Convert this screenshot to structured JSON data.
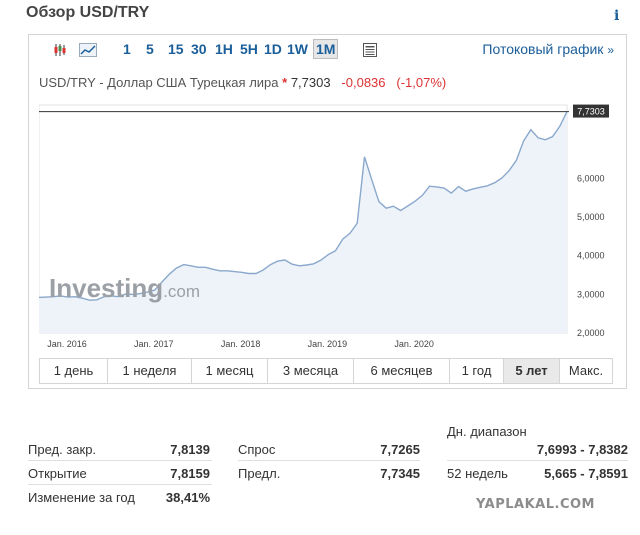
{
  "header": {
    "title": "Обзор USD/TRY",
    "info_icon": "info-icon"
  },
  "toolbar": {
    "timeframes": [
      "1",
      "5",
      "15",
      "30",
      "1H",
      "5H",
      "1D",
      "1W",
      "1M"
    ],
    "active_timeframe": "1M",
    "stream_link": "Потоковый график",
    "stream_arrow": "»"
  },
  "instrument": {
    "name": "USD/TRY - Доллар США Турецкая лира",
    "marker": "*",
    "price": "7,7303",
    "change": "-0,0836",
    "change_pct": "(-1,07%)",
    "negative_color": "#d33333"
  },
  "chart_data": {
    "type": "area",
    "x_labels": [
      "Jan, 2016",
      "Jan, 2017",
      "Jan, 2018",
      "Jan, 2019",
      "Jan, 2020"
    ],
    "y_ticks": [
      "2,0000",
      "3,0000",
      "4,0000",
      "5,0000",
      "6,0000"
    ],
    "ylim": [
      2.0,
      7.9
    ],
    "last_value_label": "7,7303",
    "logo_text": "Investing",
    "logo_suffix": ".com",
    "line_color": "#8aa8cc",
    "fill_color": "#eef3f9",
    "values": [
      2.92,
      2.93,
      2.94,
      2.96,
      2.93,
      2.94,
      2.9,
      2.85,
      2.86,
      2.94,
      2.96,
      2.94,
      3.01,
      3.0,
      3.02,
      3.06,
      3.11,
      3.32,
      3.52,
      3.68,
      3.77,
      3.74,
      3.7,
      3.7,
      3.65,
      3.61,
      3.61,
      3.59,
      3.57,
      3.54,
      3.54,
      3.63,
      3.77,
      3.86,
      3.89,
      3.78,
      3.74,
      3.76,
      3.79,
      3.89,
      4.03,
      4.13,
      4.43,
      4.58,
      4.84,
      6.56,
      5.97,
      5.4,
      5.23,
      5.28,
      5.17,
      5.29,
      5.41,
      5.56,
      5.8,
      5.78,
      5.75,
      5.62,
      5.79,
      5.67,
      5.73,
      5.77,
      5.81,
      5.89,
      6.01,
      6.2,
      6.47,
      6.97,
      7.26,
      7.05,
      7.0,
      7.08,
      7.35,
      7.73
    ]
  },
  "periods": {
    "items": [
      "1 день",
      "1 неделя",
      "1 месяц",
      "3 месяца",
      "6 месяцев",
      "1 год",
      "5 лет",
      "Макс."
    ],
    "active": "5 лет"
  },
  "stats": {
    "prev_close_label": "Пред. закр.",
    "prev_close": "7,8139",
    "open_label": "Открытие",
    "open": "7,8159",
    "year_change_label": "Изменение за год",
    "year_change": "38,41%",
    "bid_label": "Спрос",
    "bid": "7,7265",
    "ask_label": "Предл.",
    "ask": "7,7345",
    "day_range_label": "Дн. диапазон",
    "day_range": "7,6993 - 7,8382",
    "week52_label": "52 недель",
    "week52": "5,665 - 7,8591"
  },
  "watermark": "YAPLAKAL.COM"
}
